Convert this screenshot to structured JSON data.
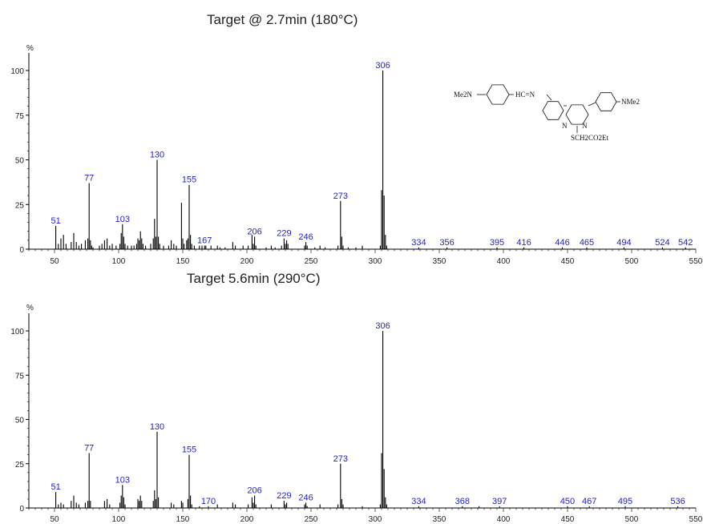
{
  "colors": {
    "peak_label": "#1f1fcc",
    "axis": "#000000",
    "bar": "#000000"
  },
  "chart_data": [
    {
      "type": "bar",
      "title": "Target @ 2.7min (180°C)",
      "ylabel": "%",
      "xlim": [
        30,
        550
      ],
      "ylim": [
        0,
        100
      ],
      "xticks": [
        50,
        100,
        150,
        200,
        250,
        300,
        350,
        400,
        450,
        500,
        550
      ],
      "yticks": [
        0,
        25,
        50,
        75,
        100
      ],
      "structure": {
        "groups": [
          "Me2N",
          "HC=N",
          "N",
          "N",
          "N",
          "NMe2",
          "SCH2CO2Et"
        ]
      },
      "peaks": [
        [
          51,
          13
        ],
        [
          53,
          3
        ],
        [
          55,
          6
        ],
        [
          57,
          8
        ],
        [
          59,
          3
        ],
        [
          63,
          4
        ],
        [
          65,
          9
        ],
        [
          67,
          4
        ],
        [
          69,
          2
        ],
        [
          71,
          3
        ],
        [
          74,
          5
        ],
        [
          76,
          6
        ],
        [
          77,
          37
        ],
        [
          78,
          5
        ],
        [
          79,
          2
        ],
        [
          80,
          1
        ],
        [
          85,
          2
        ],
        [
          87,
          3
        ],
        [
          89,
          5
        ],
        [
          91,
          6
        ],
        [
          93,
          2
        ],
        [
          95,
          3
        ],
        [
          98,
          2
        ],
        [
          101,
          3
        ],
        [
          102,
          9
        ],
        [
          103,
          14
        ],
        [
          104,
          7
        ],
        [
          105,
          3
        ],
        [
          107,
          2
        ],
        [
          110,
          2
        ],
        [
          112,
          2
        ],
        [
          114,
          3
        ],
        [
          115,
          6
        ],
        [
          116,
          5
        ],
        [
          117,
          10
        ],
        [
          118,
          6
        ],
        [
          119,
          3
        ],
        [
          121,
          2
        ],
        [
          125,
          3
        ],
        [
          127,
          6
        ],
        [
          128,
          17
        ],
        [
          129,
          7
        ],
        [
          130,
          50
        ],
        [
          131,
          7
        ],
        [
          132,
          3
        ],
        [
          135,
          2
        ],
        [
          139,
          2
        ],
        [
          141,
          5
        ],
        [
          143,
          3
        ],
        [
          145,
          2
        ],
        [
          149,
          26
        ],
        [
          150,
          6
        ],
        [
          151,
          3
        ],
        [
          153,
          5
        ],
        [
          154,
          6
        ],
        [
          155,
          36
        ],
        [
          156,
          8
        ],
        [
          157,
          3
        ],
        [
          159,
          2
        ],
        [
          163,
          2
        ],
        [
          165,
          2
        ],
        [
          167,
          2
        ],
        [
          168,
          2
        ],
        [
          172,
          2
        ],
        [
          177,
          2
        ],
        [
          179,
          1
        ],
        [
          183,
          1
        ],
        [
          189,
          4
        ],
        [
          191,
          2
        ],
        [
          197,
          2
        ],
        [
          201,
          2
        ],
        [
          204,
          8
        ],
        [
          205,
          3
        ],
        [
          206,
          7
        ],
        [
          207,
          2
        ],
        [
          215,
          1
        ],
        [
          219,
          2
        ],
        [
          222,
          1
        ],
        [
          227,
          2
        ],
        [
          229,
          6
        ],
        [
          230,
          3
        ],
        [
          231,
          5
        ],
        [
          232,
          3
        ],
        [
          245,
          2
        ],
        [
          246,
          4
        ],
        [
          247,
          2
        ],
        [
          253,
          1
        ],
        [
          257,
          2
        ],
        [
          261,
          1
        ],
        [
          271,
          2
        ],
        [
          273,
          27
        ],
        [
          274,
          7
        ],
        [
          275,
          2
        ],
        [
          279,
          1
        ],
        [
          285,
          1
        ],
        [
          290,
          2
        ],
        [
          304,
          2
        ],
        [
          305,
          33
        ],
        [
          306,
          100
        ],
        [
          307,
          30
        ],
        [
          308,
          8
        ],
        [
          309,
          2
        ],
        [
          334,
          1
        ],
        [
          356,
          1
        ],
        [
          395,
          1
        ],
        [
          416,
          1
        ],
        [
          446,
          1
        ],
        [
          465,
          1
        ],
        [
          494,
          1
        ],
        [
          524,
          1
        ],
        [
          542,
          1
        ]
      ],
      "labeled_peaks": [
        {
          "mz": 51,
          "y": 13,
          "label": "51"
        },
        {
          "mz": 77,
          "y": 37,
          "label": "77"
        },
        {
          "mz": 103,
          "y": 14,
          "label": "103"
        },
        {
          "mz": 130,
          "y": 50,
          "label": "130"
        },
        {
          "mz": 155,
          "y": 36,
          "label": "155"
        },
        {
          "mz": 167,
          "y": 2,
          "label": "167"
        },
        {
          "mz": 206,
          "y": 7,
          "label": "206"
        },
        {
          "mz": 229,
          "y": 6,
          "label": "229"
        },
        {
          "mz": 246,
          "y": 4,
          "label": "246"
        },
        {
          "mz": 273,
          "y": 27,
          "label": "273"
        },
        {
          "mz": 306,
          "y": 100,
          "label": "306"
        },
        {
          "mz": 334,
          "y": 1,
          "label": "334"
        },
        {
          "mz": 356,
          "y": 1,
          "label": "356"
        },
        {
          "mz": 395,
          "y": 1,
          "label": "395"
        },
        {
          "mz": 416,
          "y": 1,
          "label": "416"
        },
        {
          "mz": 446,
          "y": 1,
          "label": "446"
        },
        {
          "mz": 465,
          "y": 1,
          "label": "465"
        },
        {
          "mz": 494,
          "y": 1,
          "label": "494"
        },
        {
          "mz": 524,
          "y": 1,
          "label": "524"
        },
        {
          "mz": 542,
          "y": 1,
          "label": "542"
        }
      ]
    },
    {
      "type": "bar",
      "title": "Target 5.6min (290°C)",
      "ylabel": "%",
      "xlim": [
        30,
        550
      ],
      "ylim": [
        0,
        100
      ],
      "xticks": [
        50,
        100,
        150,
        200,
        250,
        300,
        350,
        400,
        450,
        500,
        550
      ],
      "yticks": [
        0,
        25,
        50,
        75,
        100
      ],
      "peaks": [
        [
          51,
          9
        ],
        [
          53,
          2
        ],
        [
          55,
          3
        ],
        [
          57,
          2
        ],
        [
          63,
          4
        ],
        [
          65,
          7
        ],
        [
          67,
          3
        ],
        [
          69,
          2
        ],
        [
          74,
          3
        ],
        [
          76,
          4
        ],
        [
          77,
          31
        ],
        [
          78,
          4
        ],
        [
          89,
          4
        ],
        [
          91,
          5
        ],
        [
          93,
          2
        ],
        [
          101,
          3
        ],
        [
          102,
          7
        ],
        [
          103,
          13
        ],
        [
          104,
          6
        ],
        [
          105,
          2
        ],
        [
          115,
          5
        ],
        [
          116,
          4
        ],
        [
          117,
          7
        ],
        [
          118,
          4
        ],
        [
          127,
          4
        ],
        [
          128,
          10
        ],
        [
          129,
          5
        ],
        [
          130,
          43
        ],
        [
          131,
          6
        ],
        [
          141,
          3
        ],
        [
          143,
          2
        ],
        [
          149,
          4
        ],
        [
          150,
          3
        ],
        [
          154,
          5
        ],
        [
          155,
          30
        ],
        [
          156,
          7
        ],
        [
          157,
          2
        ],
        [
          163,
          1
        ],
        [
          170,
          1
        ],
        [
          177,
          2
        ],
        [
          189,
          3
        ],
        [
          191,
          2
        ],
        [
          201,
          2
        ],
        [
          204,
          6
        ],
        [
          205,
          3
        ],
        [
          206,
          7
        ],
        [
          207,
          2
        ],
        [
          219,
          2
        ],
        [
          229,
          4
        ],
        [
          230,
          2
        ],
        [
          231,
          3
        ],
        [
          245,
          2
        ],
        [
          246,
          3
        ],
        [
          247,
          1
        ],
        [
          257,
          2
        ],
        [
          271,
          2
        ],
        [
          273,
          25
        ],
        [
          274,
          5
        ],
        [
          275,
          2
        ],
        [
          290,
          1
        ],
        [
          304,
          2
        ],
        [
          305,
          31
        ],
        [
          306,
          100
        ],
        [
          307,
          22
        ],
        [
          308,
          6
        ],
        [
          309,
          2
        ],
        [
          334,
          1
        ],
        [
          368,
          1
        ],
        [
          381,
          1
        ],
        [
          397,
          1
        ],
        [
          450,
          1
        ],
        [
          467,
          1
        ],
        [
          495,
          1
        ],
        [
          536,
          1
        ]
      ],
      "labeled_peaks": [
        {
          "mz": 51,
          "y": 9,
          "label": "51"
        },
        {
          "mz": 77,
          "y": 31,
          "label": "77"
        },
        {
          "mz": 103,
          "y": 13,
          "label": "103"
        },
        {
          "mz": 130,
          "y": 43,
          "label": "130"
        },
        {
          "mz": 155,
          "y": 30,
          "label": "155"
        },
        {
          "mz": 170,
          "y": 1,
          "label": "170"
        },
        {
          "mz": 206,
          "y": 7,
          "label": "206"
        },
        {
          "mz": 229,
          "y": 4,
          "label": "229"
        },
        {
          "mz": 246,
          "y": 3,
          "label": "246"
        },
        {
          "mz": 273,
          "y": 25,
          "label": "273"
        },
        {
          "mz": 306,
          "y": 100,
          "label": "306"
        },
        {
          "mz": 334,
          "y": 1,
          "label": "334"
        },
        {
          "mz": 368,
          "y": 1,
          "label": "368"
        },
        {
          "mz": 397,
          "y": 1,
          "label": "397"
        },
        {
          "mz": 450,
          "y": 1,
          "label": "450"
        },
        {
          "mz": 467,
          "y": 1,
          "label": "467"
        },
        {
          "mz": 495,
          "y": 1,
          "label": "495"
        },
        {
          "mz": 536,
          "y": 1,
          "label": "536"
        }
      ]
    }
  ]
}
